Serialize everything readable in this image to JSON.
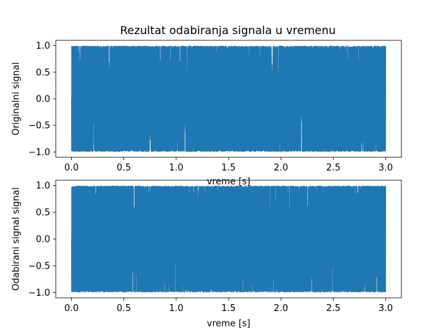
{
  "chart_data": [
    {
      "type": "line",
      "title": "Rezultat odabiranja signala u vremenu",
      "xlabel": "vreme [s]",
      "ylabel": "Originalni signal",
      "xlim": [
        -0.15,
        3.15
      ],
      "ylim": [
        -1.1,
        1.1
      ],
      "xticks": [
        0.0,
        0.5,
        1.0,
        1.5,
        2.0,
        2.5,
        3.0
      ],
      "xtick_labels": [
        "0.0",
        "0.5",
        "1.0",
        "1.5",
        "2.0",
        "2.5",
        "3.0"
      ],
      "yticks": [
        -1.0,
        -0.5,
        0.0,
        0.5,
        1.0
      ],
      "ytick_labels": [
        "−1.0",
        "−0.5",
        "0.0",
        "0.5",
        "1.0"
      ],
      "grid": false,
      "color": "#1f77b4",
      "series": [
        {
          "x_range": [
            0.0,
            3.0
          ],
          "y_range": [
            -1.0,
            1.0
          ]
        }
      ]
    },
    {
      "type": "line",
      "title": "",
      "xlabel": "vreme [s]",
      "ylabel": "Odabirani signal signal",
      "xlim": [
        -0.15,
        3.15
      ],
      "ylim": [
        -1.1,
        1.1
      ],
      "xticks": [
        0.0,
        0.5,
        1.0,
        1.5,
        2.0,
        2.5,
        3.0
      ],
      "xtick_labels": [
        "0.0",
        "0.5",
        "1.0",
        "1.5",
        "2.0",
        "2.5",
        "3.0"
      ],
      "yticks": [
        -1.0,
        -0.5,
        0.0,
        0.5,
        1.0
      ],
      "ytick_labels": [
        "−1.0",
        "−0.5",
        "0.0",
        "0.5",
        "1.0"
      ],
      "grid": false,
      "color": "#1f77b4",
      "series": [
        {
          "x_range": [
            0.0,
            3.0
          ],
          "y_range": [
            -1.0,
            1.0
          ]
        }
      ]
    }
  ]
}
